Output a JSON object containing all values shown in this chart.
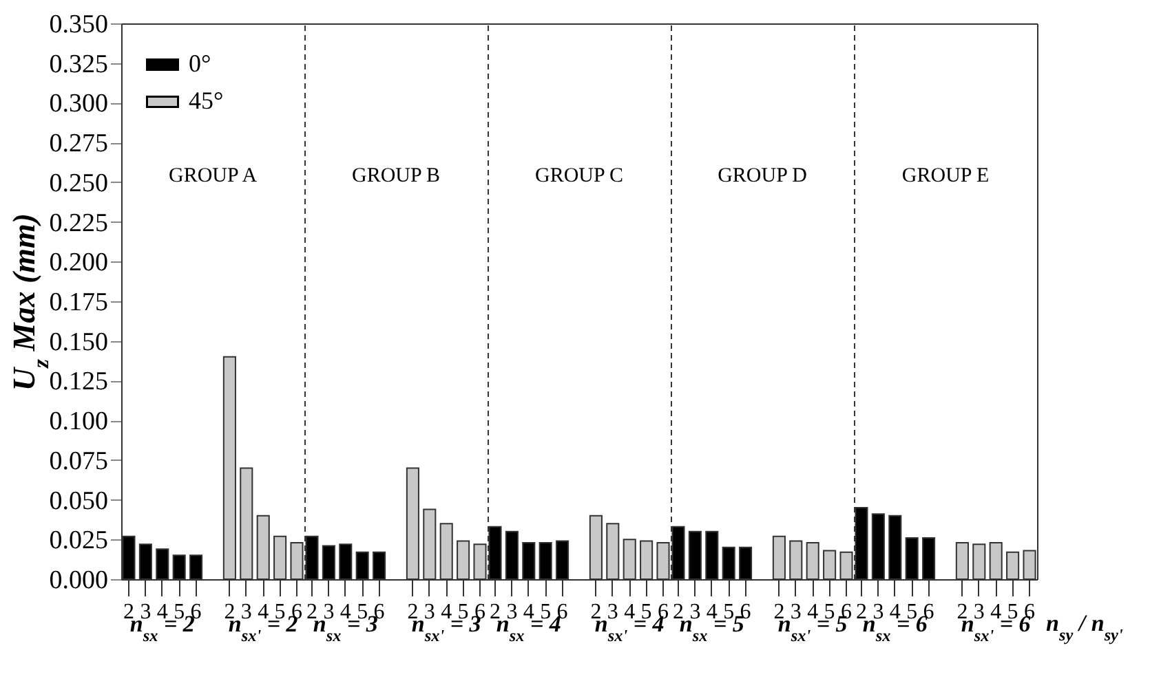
{
  "chart_data": [
    {
      "type": "bar",
      "ylabel": "U$_{z}$ Max (mm)",
      "legend": "top left",
      "annotations": [
        "GROUP A",
        "n$_{sx}$ = 2",
        "n$_{sx'}$ = 2"
      ],
      "categories": [
        "2",
        "3",
        "4",
        "5",
        "6",
        null,
        "2",
        "3",
        "4",
        "5",
        "6"
      ],
      "ylim": [
        0,
        0.35
      ],
      "yticks": [
        {
          "value": 0,
          "label": "0.000"
        },
        {
          "value": 0.025,
          "label": "0.025"
        },
        {
          "value": 0.05,
          "label": "0.050"
        },
        {
          "value": 0.075,
          "label": "0.075"
        },
        {
          "value": 0.1,
          "label": "0.100"
        },
        {
          "value": 0.125,
          "label": "0.125"
        },
        {
          "value": 0.15,
          "label": "0.150"
        },
        {
          "value": 0.175,
          "label": "0.175"
        },
        {
          "value": 0.2,
          "label": "0.200"
        },
        {
          "value": 0.225,
          "label": "0.225"
        },
        {
          "value": 0.25,
          "label": "0.250"
        },
        {
          "value": 0.275,
          "label": "0.275"
        },
        {
          "value": 0.3,
          "label": "0.300"
        },
        {
          "value": 0.325,
          "label": "0.325"
        },
        {
          "value": 0.35,
          "label": "0.350"
        }
      ],
      "series": [
        {
          "name": "0°",
          "color": "#000000",
          "values": [
            0.027,
            0.022,
            0.019,
            0.015,
            0.015,
            null,
            null,
            null,
            null,
            null,
            null
          ]
        },
        {
          "name": "45°",
          "color": "#c8c8c8",
          "values": [
            null,
            null,
            null,
            null,
            null,
            null,
            0.14,
            0.07,
            0.04,
            0.027,
            0.023
          ]
        }
      ]
    },
    {
      "type": "bar",
      "tick_labels": "x",
      "annotations": [
        "GROUP B",
        "n$_{sx}$ = 3",
        "n$_{sx'}$ = 3"
      ],
      "categories": [
        "2",
        "3",
        "4",
        "5",
        "6",
        null,
        "2",
        "3",
        "4",
        "5",
        "6"
      ],
      "ylim": [
        0,
        0.35
      ],
      "series": [
        {
          "color": "#000000",
          "values": [
            0.027,
            0.021,
            0.022,
            0.017,
            0.017,
            null,
            null,
            null,
            null,
            null,
            null
          ]
        },
        {
          "color": "#c8c8c8",
          "values": [
            null,
            null,
            null,
            null,
            null,
            null,
            0.07,
            0.044,
            0.035,
            0.024,
            0.022
          ]
        }
      ]
    },
    {
      "type": "bar",
      "tick_labels": "x",
      "annotations": [
        "GROUP C",
        "n$_{sx}$ = 4",
        "n$_{sx'}$ = 4"
      ],
      "categories": [
        "2",
        "3",
        "4",
        "5",
        "6",
        null,
        "2",
        "3",
        "4",
        "5",
        "6"
      ],
      "ylim": [
        0,
        0.35
      ],
      "series": [
        {
          "color": "#000000",
          "values": [
            0.033,
            0.03,
            0.023,
            0.023,
            0.024,
            null,
            null,
            null,
            null,
            null,
            null
          ]
        },
        {
          "color": "#c8c8c8",
          "values": [
            null,
            null,
            null,
            null,
            null,
            null,
            0.04,
            0.035,
            0.025,
            0.024,
            0.023
          ]
        }
      ]
    },
    {
      "type": "bar",
      "tick_labels": "x",
      "annotations": [
        "GROUP D",
        "n$_{sx}$ = 5",
        "n$_{sx'}$ = 5"
      ],
      "categories": [
        "2",
        "3",
        "4",
        "5",
        "6",
        null,
        "2",
        "3",
        "4",
        "5",
        "6"
      ],
      "ylim": [
        0,
        0.35
      ],
      "series": [
        {
          "color": "#000000",
          "values": [
            0.033,
            0.03,
            0.03,
            0.02,
            0.02,
            null,
            null,
            null,
            null,
            null,
            null
          ]
        },
        {
          "color": "#c8c8c8",
          "values": [
            null,
            null,
            null,
            null,
            null,
            null,
            0.027,
            0.024,
            0.023,
            0.018,
            0.017
          ]
        }
      ]
    },
    {
      "type": "bar",
      "tick_labels": "x",
      "xlabel": "n$_{sy}$ / n$_{sy'}$",
      "annotations": [
        "GROUP E",
        "n$_{sx}$ = 6",
        "n$_{sx'}$ = 6"
      ],
      "categories": [
        "2",
        "3",
        "4",
        "5",
        "6",
        null,
        "2",
        "3",
        "4",
        "5",
        "6"
      ],
      "ylim": [
        0,
        0.35
      ],
      "series": [
        {
          "color": "#000000",
          "values": [
            0.045,
            0.041,
            0.04,
            0.026,
            0.026,
            null,
            null,
            null,
            null,
            null,
            null
          ]
        },
        {
          "color": "#c8c8c8",
          "values": [
            null,
            null,
            null,
            null,
            null,
            null,
            0.023,
            0.022,
            0.023,
            0.017,
            0.018
          ]
        }
      ]
    }
  ]
}
